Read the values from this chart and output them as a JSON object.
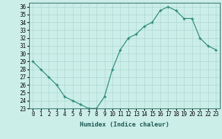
{
  "x": [
    0,
    1,
    2,
    3,
    4,
    5,
    6,
    7,
    8,
    9,
    10,
    11,
    12,
    13,
    14,
    15,
    16,
    17,
    18,
    19,
    20,
    21,
    22,
    23
  ],
  "y": [
    29,
    28,
    27,
    26,
    24.5,
    24,
    23.5,
    23,
    23,
    24.5,
    28,
    30.5,
    32,
    32.5,
    33.5,
    34,
    35.5,
    36,
    35.5,
    34.5,
    34.5,
    32,
    31,
    30.5
  ],
  "line_color": "#2e8b7a",
  "marker": "+",
  "marker_color": "#2e8b7a",
  "bg_color": "#cceee8",
  "grid_color": "#aad6d0",
  "xlabel": "Humidex (Indice chaleur)",
  "ylim": [
    23,
    36.5
  ],
  "xlim": [
    -0.5,
    23.5
  ],
  "yticks": [
    23,
    24,
    25,
    26,
    27,
    28,
    29,
    30,
    31,
    32,
    33,
    34,
    35,
    36
  ],
  "xticks": [
    0,
    1,
    2,
    3,
    4,
    5,
    6,
    7,
    8,
    9,
    10,
    11,
    12,
    13,
    14,
    15,
    16,
    17,
    18,
    19,
    20,
    21,
    22,
    23
  ],
  "label_fontsize": 6.5,
  "tick_fontsize": 5.5,
  "linewidth": 0.9,
  "markersize": 3.5
}
